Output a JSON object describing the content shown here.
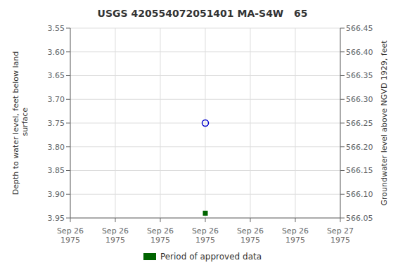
{
  "chart_data": {
    "type": "scatter",
    "title": "USGS 420554072051401 MA-S4W   65",
    "ylabel": "Depth to water level, feet below land\n surface",
    "y2label": "Groundwater level above NGVD 1929, feet",
    "categories": [
      "Sep 26\n1975",
      "Sep 26\n1975",
      "Sep 26\n1975",
      "Sep 26\n1975",
      "Sep 26\n1975",
      "Sep 26\n1975",
      "Sep 27\n1975"
    ],
    "series": [
      {
        "values": [
          null,
          null,
          null,
          3.75,
          null,
          null,
          null
        ],
        "color": "#0000cc",
        "marker": "circle"
      },
      {
        "name": "Period of approved data",
        "values": [
          null,
          null,
          null,
          3.94,
          null,
          null,
          null
        ],
        "color": "#006400",
        "marker": "square"
      }
    ],
    "ylim": [
      3.95,
      3.55
    ],
    "yticks": [
      3.55,
      {
        "value": 3.6,
        "label": "3.60"
      },
      3.65,
      {
        "value": 3.7,
        "label": "3.70"
      },
      3.75,
      {
        "value": 3.8,
        "label": "3.80"
      },
      3.85,
      {
        "value": 3.9,
        "label": "3.90"
      },
      3.95
    ],
    "y2lim": [
      566.05,
      566.45
    ],
    "y2ticks": [
      566.45,
      {
        "value": 566.4,
        "label": "566.40"
      },
      566.35,
      {
        "value": 566.3,
        "label": "566.30"
      },
      566.25,
      {
        "value": 566.2,
        "label": "566.20"
      },
      566.15,
      {
        "value": 566.1,
        "label": "566.10"
      },
      566.05
    ],
    "grid": true,
    "legend": "bottom"
  }
}
